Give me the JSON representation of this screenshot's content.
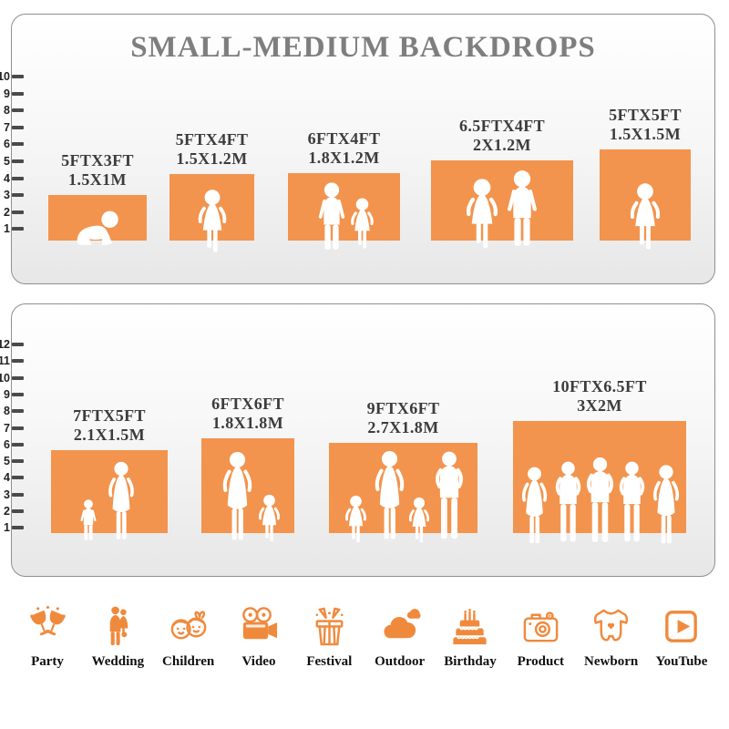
{
  "title": "SMALL-MEDIUM BACKDROPS",
  "colors": {
    "backdrop_orange": "#F2944E",
    "icon_orange": "#EF8A3D",
    "title_gray": "#7E7E7E",
    "label_dark": "#3C3C3C"
  },
  "panels": [
    {
      "name": "small-medium-top",
      "ruler_labels": [
        "10",
        "9",
        "8",
        "7",
        "6",
        "5",
        "4",
        "3",
        "2",
        "1"
      ],
      "backdrops": [
        {
          "size_ft": "5FTX3FT",
          "size_m": "1.5X1M",
          "figure": "crawling-baby"
        },
        {
          "size_ft": "5FTX4FT",
          "size_m": "1.5X1.2M",
          "figure": "toddler-girl"
        },
        {
          "size_ft": "6FTX4FT",
          "size_m": "1.8X1.2M",
          "figure": "boy-and-girl"
        },
        {
          "size_ft": "6.5FTX4FT",
          "size_m": "2X1.2M",
          "figure": "girl-and-boy"
        },
        {
          "size_ft": "5FTX5FT",
          "size_m": "1.5X1.5M",
          "figure": "toddler-girl"
        }
      ]
    },
    {
      "name": "medium-large-bottom",
      "ruler_labels": [
        "12",
        "11",
        "10",
        "9",
        "8",
        "7",
        "6",
        "5",
        "4",
        "3",
        "2",
        "1"
      ],
      "backdrops": [
        {
          "size_ft": "7FTX5FT",
          "size_m": "2.1X1.5M",
          "figure": "mother-and-child"
        },
        {
          "size_ft": "6FTX6FT",
          "size_m": "1.8X1.8M",
          "figure": "mother-baby-and-girl"
        },
        {
          "size_ft": "9FTX6FT",
          "size_m": "2.7X1.8M",
          "figure": "family-of-four"
        },
        {
          "size_ft": "10FTX6.5FT",
          "size_m": "3X2M",
          "figure": "group-of-five"
        }
      ]
    }
  ],
  "categories": [
    {
      "label": "Party",
      "icon": "party-icon"
    },
    {
      "label": "Wedding",
      "icon": "wedding-icon"
    },
    {
      "label": "Children",
      "icon": "children-icon"
    },
    {
      "label": "Video",
      "icon": "video-icon"
    },
    {
      "label": "Festival",
      "icon": "festival-icon"
    },
    {
      "label": "Outdoor",
      "icon": "outdoor-icon"
    },
    {
      "label": "Birthday",
      "icon": "birthday-icon"
    },
    {
      "label": "Product",
      "icon": "product-icon"
    },
    {
      "label": "Newborn",
      "icon": "newborn-icon"
    },
    {
      "label": "YouTube",
      "icon": "youtube-icon"
    }
  ]
}
